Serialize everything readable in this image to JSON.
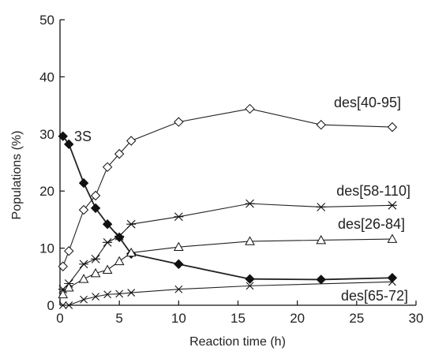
{
  "chart_data": {
    "type": "line",
    "xlabel": "Reaction time (h)",
    "ylabel": "Populations (%)",
    "xlim": [
      0,
      30
    ],
    "ylim": [
      0,
      50
    ],
    "xticks": [
      "0",
      "5",
      "10",
      "15",
      "20",
      "25",
      "30"
    ],
    "yticks": [
      "0",
      "10",
      "20",
      "30",
      "40",
      "50"
    ],
    "grid": false,
    "legend": "inline labels",
    "series": [
      {
        "name": "3S",
        "marker": "filled-diamond",
        "x": [
          0.25,
          0.75,
          2,
          3,
          4,
          5,
          6,
          10,
          16,
          22,
          28
        ],
        "y": [
          29.6,
          28.2,
          21.4,
          17.0,
          14.2,
          11.9,
          9.0,
          7.2,
          4.6,
          4.5,
          4.8
        ]
      },
      {
        "name": "des[40-95]",
        "marker": "open-diamond",
        "x": [
          0.25,
          0.75,
          2,
          3,
          4,
          5,
          6,
          10,
          16,
          22,
          28
        ],
        "y": [
          6.8,
          9.5,
          16.7,
          19.2,
          24.2,
          26.5,
          28.8,
          32.1,
          34.4,
          31.6,
          31.2
        ]
      },
      {
        "name": "des[58-110]",
        "marker": "asterisk",
        "x": [
          0.25,
          0.75,
          2,
          3,
          4,
          5,
          6,
          10,
          16,
          22,
          28
        ],
        "y": [
          2.8,
          3.8,
          7.2,
          8.1,
          11.0,
          12.1,
          14.2,
          15.5,
          17.8,
          17.2,
          17.5
        ]
      },
      {
        "name": "des[26-84]",
        "marker": "open-triangle",
        "x": [
          0.25,
          0.75,
          2,
          3,
          4,
          5,
          6,
          10,
          16,
          22,
          28
        ],
        "y": [
          1.9,
          3.1,
          4.6,
          5.6,
          6.2,
          7.7,
          9.2,
          10.2,
          11.2,
          11.4,
          11.6
        ]
      },
      {
        "name": "des[65-72]",
        "marker": "x",
        "x": [
          0.25,
          0.75,
          2,
          3,
          4,
          5,
          6,
          10,
          16,
          28
        ],
        "y": [
          0.0,
          0.0,
          1.0,
          1.5,
          1.9,
          2.0,
          2.2,
          2.8,
          3.4,
          4.1
        ]
      }
    ]
  }
}
